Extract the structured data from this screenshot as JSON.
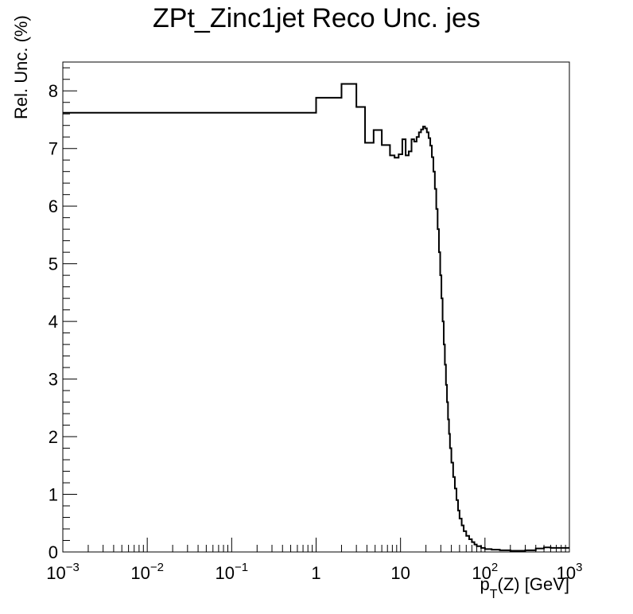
{
  "chart_data": {
    "type": "line",
    "title": "ZPt_Zinc1jet Reco Unc. jes",
    "xlabel": "p_T(Z) [GeV]",
    "xlabel_parts": {
      "main": "p",
      "sub": "T",
      "rest": "(Z) [GeV]"
    },
    "ylabel": "Rel. Unc. (%)",
    "xscale": "log",
    "xlim": [
      0.001,
      1000
    ],
    "ylim": [
      0,
      8.5
    ],
    "x_ticks": [
      {
        "label": "10",
        "exp": "−3",
        "value": 0.001
      },
      {
        "label": "10",
        "exp": "−2",
        "value": 0.01
      },
      {
        "label": "10",
        "exp": "−1",
        "value": 0.1
      },
      {
        "label": "1",
        "exp": "",
        "value": 1
      },
      {
        "label": "10",
        "exp": "",
        "value": 10
      },
      {
        "label": "10",
        "exp": "2",
        "value": 100
      },
      {
        "label": "10",
        "exp": "3",
        "value": 1000
      }
    ],
    "y_ticks": [
      "0",
      "1",
      "2",
      "3",
      "4",
      "5",
      "6",
      "7",
      "8"
    ],
    "grid": false,
    "legend": "none",
    "series": [
      {
        "line_color": "#000000",
        "step": "histogram",
        "bin_edges": [
          0.001,
          1,
          2,
          3,
          3.8,
          4.8,
          6,
          7.5,
          8.5,
          9.5,
          10.5,
          11.5,
          12.5,
          13.5,
          14.5,
          15.5,
          16.5,
          17.5,
          18.5,
          19.5,
          20.5,
          21.5,
          22.5,
          23.5,
          24.5,
          25.5,
          26.5,
          27.5,
          28.5,
          29.5,
          30.5,
          31.5,
          32.5,
          33.5,
          34.5,
          35.5,
          36.5,
          37.5,
          38.5,
          40,
          42,
          44,
          46,
          48,
          50,
          53,
          56,
          60,
          65,
          70,
          75,
          80,
          90,
          100,
          120,
          150,
          200,
          300,
          400,
          500,
          600,
          1000
        ],
        "values": [
          7.62,
          7.88,
          8.12,
          7.72,
          7.1,
          7.32,
          7.06,
          6.88,
          6.84,
          6.9,
          7.16,
          6.88,
          6.95,
          7.16,
          7.12,
          7.2,
          7.28,
          7.33,
          7.38,
          7.35,
          7.28,
          7.18,
          7.05,
          6.85,
          6.6,
          6.3,
          5.95,
          5.6,
          5.2,
          4.8,
          4.4,
          4.0,
          3.6,
          3.25,
          2.9,
          2.6,
          2.3,
          2.05,
          1.8,
          1.55,
          1.3,
          1.1,
          0.9,
          0.72,
          0.58,
          0.46,
          0.36,
          0.28,
          0.22,
          0.17,
          0.13,
          0.1,
          0.07,
          0.05,
          0.04,
          0.03,
          0.02,
          0.03,
          0.06,
          0.08,
          0.07
        ]
      }
    ]
  }
}
